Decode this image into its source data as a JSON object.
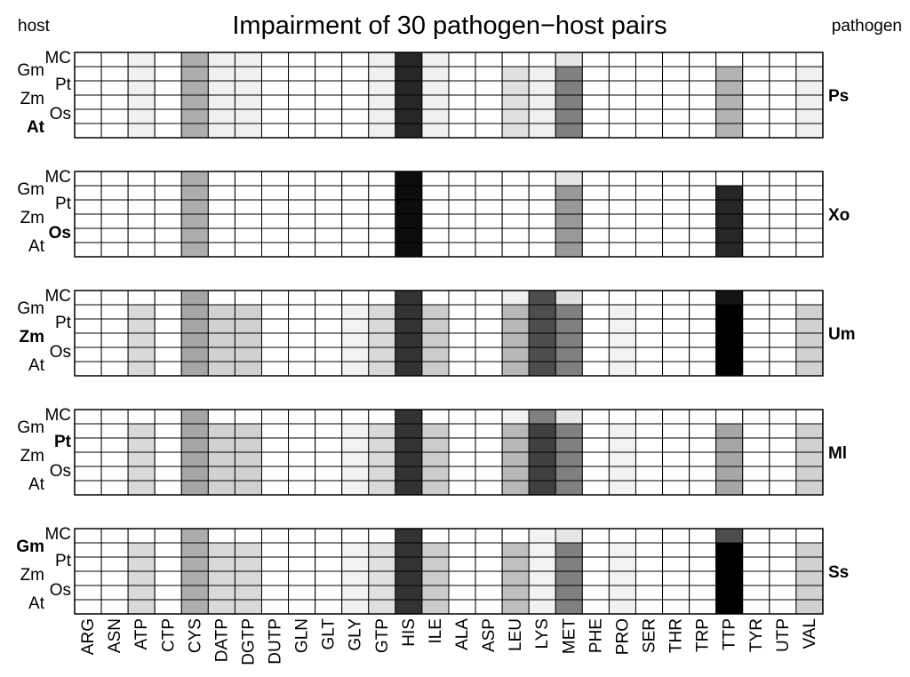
{
  "chart_data": {
    "type": "heatmap",
    "title": "Impairment of 30 pathogen−host pairs",
    "left_label": "host",
    "right_label": "pathogen",
    "columns": [
      "ARG",
      "ASN",
      "ATP",
      "CTP",
      "CYS",
      "DATP",
      "DGTP",
      "DUTP",
      "GLN",
      "GLT",
      "GLY",
      "GTP",
      "HIS",
      "ILE",
      "ALA",
      "ASP",
      "LEU",
      "LYS",
      "MET",
      "PHE",
      "PRO",
      "SER",
      "THR",
      "TRP",
      "TTP",
      "TYR",
      "UTP",
      "VAL"
    ],
    "row_labels": [
      "MC",
      "Gm",
      "Pt",
      "Zm",
      "Os",
      "At"
    ],
    "value_scale": "0 = white (no impairment), 1 = black (full impairment)",
    "panels": [
      {
        "pathogen": "Ps",
        "highlighted_host": "At",
        "column_values": [
          0,
          0,
          0.06,
          0,
          0.32,
          0.06,
          0.06,
          0,
          0,
          0,
          0,
          0.06,
          0.85,
          0.06,
          0,
          0,
          0.12,
          0.06,
          0.5,
          0,
          0,
          0,
          0,
          0,
          0.3,
          0,
          0,
          0.06
        ],
        "row_overrides": {
          "MC": {
            "LEU": 0,
            "LYS": 0,
            "MET": 0.1,
            "TTP": 0,
            "VAL": 0
          }
        }
      },
      {
        "pathogen": "Xo",
        "highlighted_host": "Os",
        "column_values": [
          0,
          0,
          0,
          0,
          0.32,
          0,
          0,
          0,
          0,
          0,
          0,
          0,
          0.95,
          0,
          0,
          0,
          0,
          0,
          0.4,
          0,
          0,
          0,
          0,
          0,
          0.85,
          0,
          0,
          0
        ],
        "row_overrides": {
          "MC": {
            "MET": 0.1,
            "TTP": 0
          }
        }
      },
      {
        "pathogen": "Um",
        "highlighted_host": "Zm",
        "column_values": [
          0,
          0,
          0.15,
          0,
          0.35,
          0.18,
          0.18,
          0,
          0,
          0,
          0.05,
          0.15,
          0.8,
          0.2,
          0,
          0,
          0.28,
          0.7,
          0.5,
          0,
          0.05,
          0,
          0,
          0,
          1.0,
          0,
          0,
          0.18
        ],
        "row_overrides": {
          "MC": {
            "ATP": 0,
            "DATP": 0,
            "DGTP": 0,
            "GLY": 0,
            "GTP": 0,
            "ILE": 0,
            "LEU": 0.06,
            "MET": 0.12,
            "PRO": 0,
            "VAL": 0,
            "TTP": 0.92
          }
        }
      },
      {
        "pathogen": "Ml",
        "highlighted_host": "Pt",
        "column_values": [
          0,
          0,
          0.15,
          0,
          0.35,
          0.18,
          0.18,
          0,
          0,
          0,
          0.05,
          0.15,
          0.8,
          0.2,
          0,
          0,
          0.28,
          0.75,
          0.5,
          0,
          0.05,
          0,
          0,
          0,
          0.35,
          0,
          0,
          0.18
        ],
        "row_overrides": {
          "MC": {
            "ATP": 0,
            "DATP": 0,
            "DGTP": 0,
            "GLY": 0,
            "GTP": 0,
            "ILE": 0,
            "LEU": 0.05,
            "LYS": 0.5,
            "MET": 0.1,
            "PRO": 0,
            "TTP": 0,
            "VAL": 0
          }
        }
      },
      {
        "pathogen": "Ss",
        "highlighted_host": "Gm",
        "column_values": [
          0,
          0,
          0.15,
          0,
          0.32,
          0.15,
          0.15,
          0,
          0,
          0,
          0.05,
          0.12,
          0.8,
          0.2,
          0,
          0,
          0.25,
          0.05,
          0.5,
          0,
          0.05,
          0,
          0,
          0,
          1.0,
          0,
          0,
          0.18
        ],
        "row_overrides": {
          "MC": {
            "ATP": 0,
            "DATP": 0,
            "DGTP": 0,
            "GLY": 0,
            "GTP": 0,
            "ILE": 0,
            "LEU": 0,
            "MET": 0.1,
            "PRO": 0,
            "VAL": 0,
            "TTP": 0.7
          }
        }
      }
    ]
  }
}
